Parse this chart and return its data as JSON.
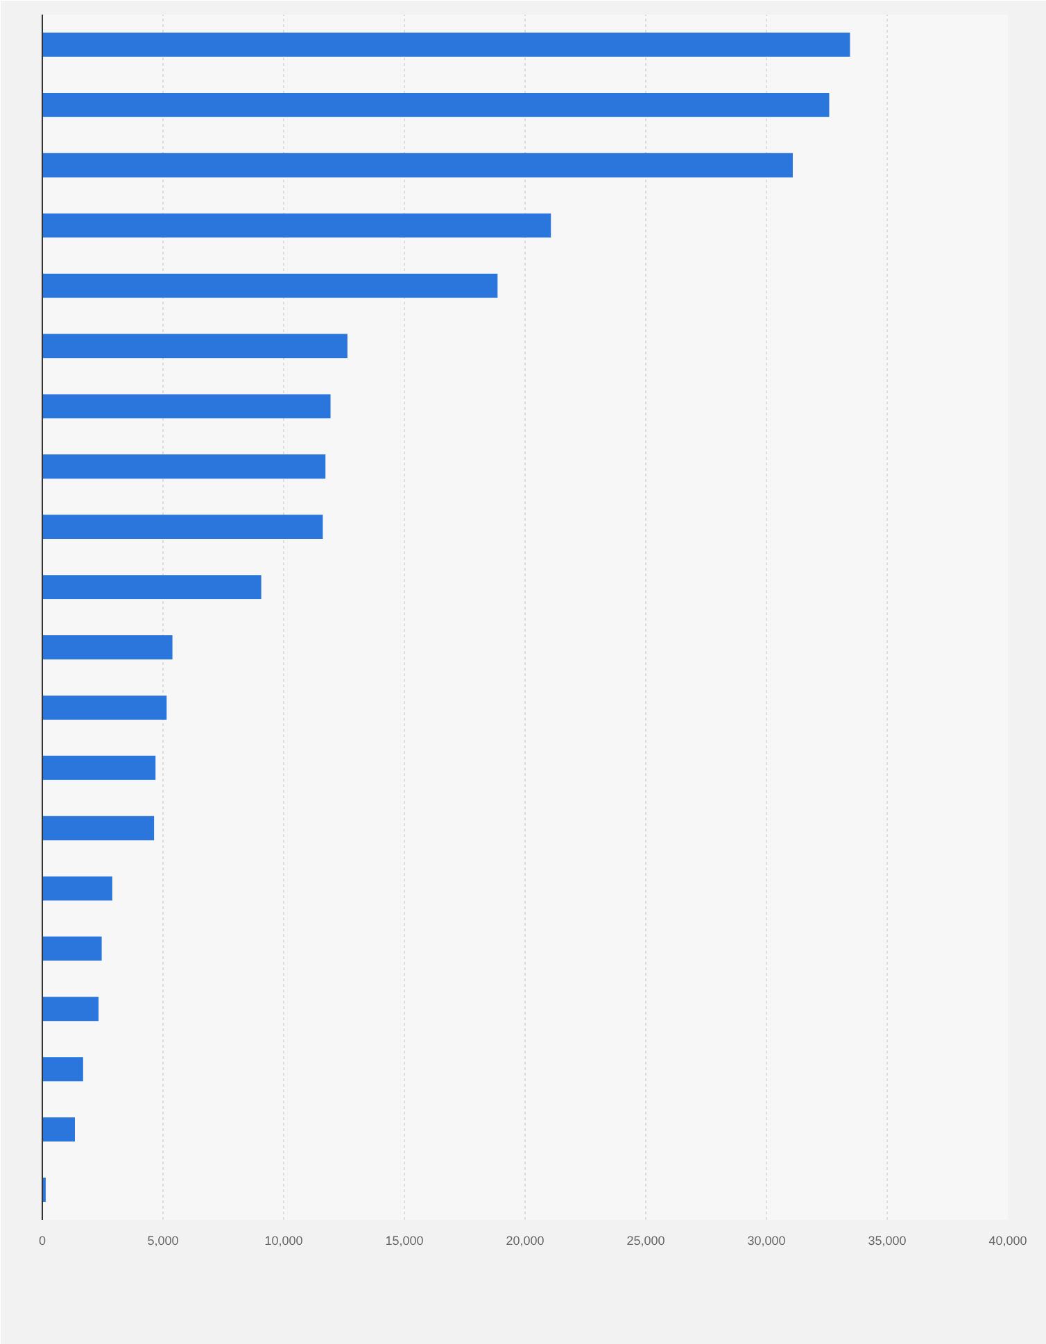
{
  "chart_data": {
    "type": "bar",
    "orientation": "horizontal",
    "categories": [
      null,
      null,
      null,
      null,
      null,
      null,
      null,
      null,
      null,
      null,
      null,
      null,
      null,
      null,
      null,
      null,
      null,
      null,
      null,
      null
    ],
    "values": [
      33460,
      32600,
      31090,
      21070,
      18860,
      12640,
      11940,
      11730,
      11620,
      9070,
      5390,
      5150,
      4690,
      4630,
      2900,
      2460,
      2330,
      1690,
      1350,
      140
    ],
    "color": "#2a76dc",
    "xlim": [
      0,
      40000
    ],
    "xticks": [
      {
        "value": 0,
        "label": "0"
      },
      {
        "value": 5000,
        "label": "5,000"
      },
      {
        "value": 10000,
        "label": "10,000"
      },
      {
        "value": 15000,
        "label": "15,000"
      },
      {
        "value": 20000,
        "label": "20,000"
      },
      {
        "value": 25000,
        "label": "25,000"
      },
      {
        "value": 30000,
        "label": "30,000"
      },
      {
        "value": 35000,
        "label": "35,000"
      },
      {
        "value": 40000,
        "label": "40,000"
      }
    ],
    "grid": "x"
  }
}
